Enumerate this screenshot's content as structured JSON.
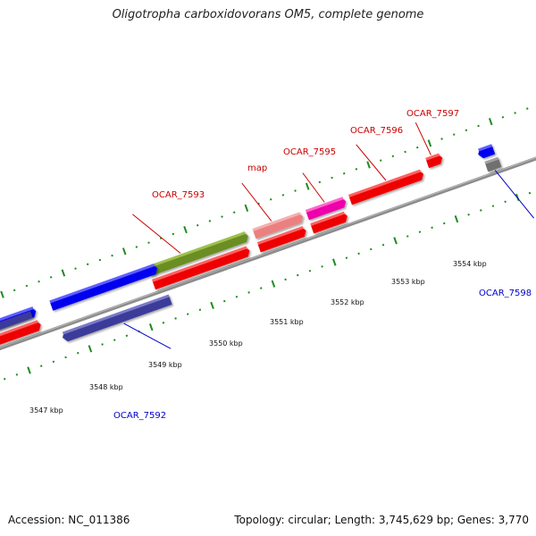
{
  "title": "Oligotropha carboxidovorans OM5, complete genome",
  "footer": {
    "accession": "Accession: NC_011386",
    "stats": "Topology: circular; Length: 3,745,629 bp; Genes: 3,770"
  },
  "colors": {
    "backbone": "#8c8c8c",
    "tick": "#1e8c1e",
    "label_forward": "#cc0000",
    "label_reverse": "#0000cc",
    "cds_red": "#ee0000",
    "blue": "#0000ee",
    "navy": "#3a3a9a",
    "olive": "#6b8e23",
    "pink": "#ec8080",
    "magenta": "#ee00aa",
    "gray": "#707070"
  },
  "map": {
    "scale_labels": [
      "3547 kbp",
      "3548 kbp",
      "3549 kbp",
      "3550 kbp",
      "3551 kbp",
      "3552 kbp",
      "3553 kbp",
      "3554 kbp"
    ],
    "gene_labels": [
      {
        "text": "OCAR_7592",
        "strand": "reverse"
      },
      {
        "text": "OCAR_7593",
        "strand": "forward"
      },
      {
        "text": "map",
        "strand": "forward"
      },
      {
        "text": "OCAR_7595",
        "strand": "forward"
      },
      {
        "text": "OCAR_7596",
        "strand": "forward"
      },
      {
        "text": "OCAR_7597",
        "strand": "forward"
      },
      {
        "text": "OCAR_7598",
        "strand": "reverse"
      }
    ]
  }
}
